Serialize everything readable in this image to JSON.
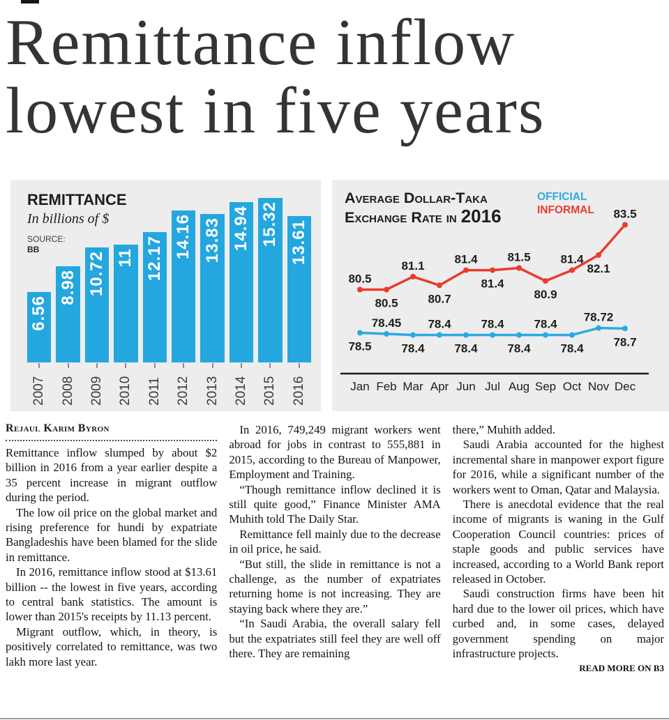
{
  "page": {
    "headline_line1": "Remittance inflow",
    "headline_line2": "lowest in five years"
  },
  "colors": {
    "bar_blue": "#24a7df",
    "official_blue": "#2baae2",
    "informal_red": "#ea3b2e",
    "panel_bg": "#ededed",
    "ink": "#1d1d1b"
  },
  "chart_data": [
    {
      "type": "bar",
      "title": "REMITTANCE",
      "subtitle": "In billions of $",
      "source_label": "SOURCE:",
      "source_value": "BB",
      "categories": [
        "2007",
        "2008",
        "2009",
        "2010",
        "2011",
        "2012",
        "2013",
        "2014",
        "2015",
        "2016"
      ],
      "values": [
        6.56,
        8.98,
        10.72,
        11,
        12.17,
        14.16,
        13.83,
        14.94,
        15.32,
        13.61
      ],
      "value_labels": [
        "6.56",
        "8.98",
        "10.72",
        "11",
        "12.17",
        "14.16",
        "13.83",
        "14.94",
        "15.32",
        "13.61"
      ],
      "ylim": [
        0,
        15.32
      ]
    },
    {
      "type": "line",
      "title_line1": "Average Dollar-Taka",
      "title_line2_prefix": "Exchange Rate in",
      "title_line2_year": "2016",
      "x": [
        "Jan",
        "Feb",
        "Mar",
        "Apr",
        "Jun",
        "Jul",
        "Aug",
        "Sep",
        "Oct",
        "Nov",
        "Dec"
      ],
      "ylim": [
        77,
        84.5
      ],
      "series": [
        {
          "name": "OFFICIAL",
          "color_key": "official_blue",
          "values": [
            78.5,
            78.45,
            78.4,
            78.4,
            78.4,
            78.4,
            78.4,
            78.4,
            78.4,
            78.72,
            78.7
          ],
          "labels": [
            "78.5",
            "78.45",
            "78.4",
            "78.4",
            "78.4",
            "78.4",
            "78.4",
            "78.4",
            "78.4",
            "78.72",
            "78.7"
          ],
          "even_labels": "below"
        },
        {
          "name": "INFORMAL",
          "color_key": "informal_red",
          "values": [
            80.5,
            80.5,
            81.1,
            80.7,
            81.4,
            81.4,
            81.5,
            80.9,
            81.4,
            82.1,
            83.5
          ],
          "labels": [
            "80.5",
            "80.5",
            "81.1",
            "80.7",
            "81.4",
            "81.4",
            "81.5",
            "80.9",
            "81.4",
            "82.1",
            "83.5"
          ],
          "even_labels": "above"
        }
      ]
    }
  ],
  "article": {
    "byline": "Rejaul Karim Byron",
    "columns": [
      {
        "paragraphs": [
          {
            "text": "Remittance inflow slumped by about $2 billion in 2016 from a year earlier despite a 35 percent increase in migrant outflow during the period.",
            "indent": false
          },
          {
            "text": "The low oil price on the global market and rising preference for hundi by expatriate Bangladeshis have been blamed for the slide in remittance.",
            "indent": true
          },
          {
            "text": "In 2016, remittance inflow stood at $13.61 billion -- the lowest in five years, according to central bank statistics. The amount is lower than 2015's receipts by 11.13 percent.",
            "indent": true
          },
          {
            "text": "Migrant outflow, which, in theory, is positively correlated to remittance, was two lakh more last year.",
            "indent": true
          }
        ]
      },
      {
        "paragraphs": [
          {
            "text": "In 2016, 749,249 migrant workers went abroad for jobs in contrast to 555,881 in 2015, according to the Bureau of Manpower, Employment and Training.",
            "indent": true
          },
          {
            "text": "“Though remittance inflow declined it is still quite good,” Finance Minister AMA Muhith told The Daily Star.",
            "indent": true
          },
          {
            "text": "Remittance fell mainly due to the decrease in oil price, he said.",
            "indent": true
          },
          {
            "text": "“But still, the slide in remittance is not a challenge, as the number of expatriates returning home is not increasing. They are staying back where they are.”",
            "indent": true
          },
          {
            "text": "“In Saudi Arabia, the overall salary fell but the expatriates still feel they are well off there. They are remaining",
            "indent": true
          }
        ]
      },
      {
        "paragraphs": [
          {
            "text": "there,” Muhith added.",
            "indent": false
          },
          {
            "text": "Saudi Arabia accounted for the highest incremental share in manpower export figure for 2016, while a significant number of the workers went to Oman, Qatar and Malaysia.",
            "indent": true
          },
          {
            "text": "There is anecdotal evidence that the real income of migrants is waning in the Gulf Cooperation Council countries: prices of staple goods and public services have increased, according to a World Bank report released in October.",
            "indent": true
          },
          {
            "text": "Saudi construction firms have been hit hard due to the lower oil prices, which have curbed and, in some cases, delayed government spending on major infrastructure projects.",
            "indent": true
          }
        ]
      }
    ],
    "read_more": "READ MORE ON B3"
  }
}
